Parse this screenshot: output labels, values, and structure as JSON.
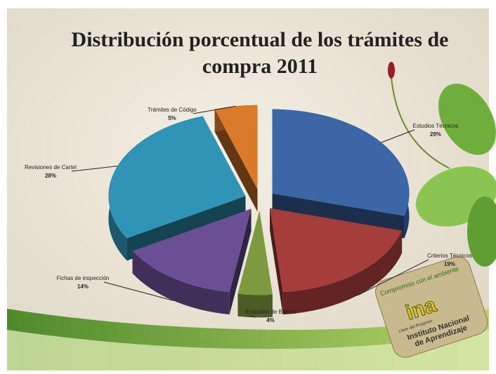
{
  "chart_data": {
    "type": "pie",
    "title": "Distribución porcentual de los trámites de compra 2011",
    "categories": [
      "Estudios Técnicos",
      "Criterios Técnicos",
      "Exclusión de Bienes",
      "Fichas de inspección",
      "Revisiones de Cartel",
      "Trámites de Código"
    ],
    "values": [
      29,
      19,
      4,
      14,
      28,
      5
    ],
    "value_labels": [
      "29%",
      "19%",
      "4%",
      "14%",
      "28%",
      "5%"
    ],
    "colors": [
      "#3d66a6",
      "#a53e3b",
      "#7d9a3e",
      "#6b4f94",
      "#2f94b5",
      "#dc7a2c"
    ]
  },
  "logo": {
    "motto": "Compromiso con el ambiente",
    "brand": "ina",
    "tagline": "Llave del Progreso",
    "name_line1": "Instituto Nacional",
    "name_line2": "de Aprendizaje"
  }
}
